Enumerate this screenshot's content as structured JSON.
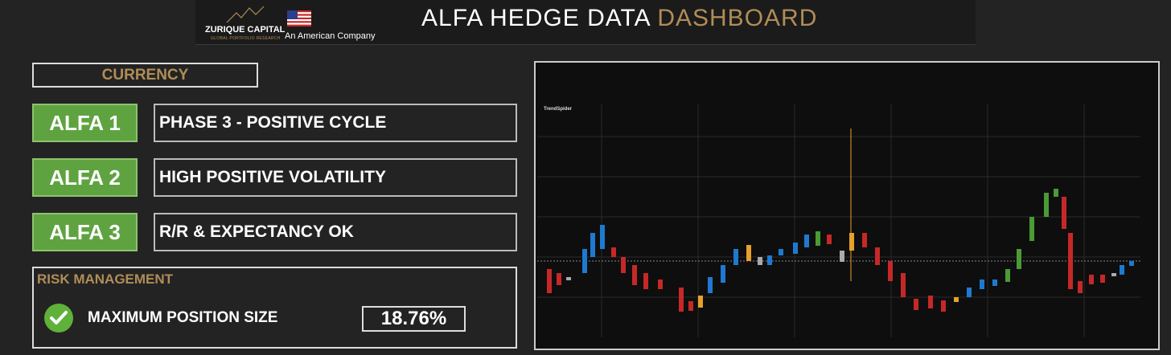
{
  "header": {
    "company": "ZURIQUE CAPITAL",
    "company_subtitle": "GLOBAL PORTFOLIO RESEARCH",
    "tagline": "An American Company",
    "title_main": "ALFA HEDGE DATA",
    "title_accent": "DASHBOARD"
  },
  "currency": {
    "label": "CURRENCY"
  },
  "signals": [
    {
      "name": "ALFA 1",
      "status": "PHASE 3 - POSITIVE CYCLE"
    },
    {
      "name": "ALFA 2",
      "status": "HIGH POSITIVE VOLATILITY"
    },
    {
      "name": "ALFA 3",
      "status": "R/R & EXPECTANCY OK"
    }
  ],
  "risk": {
    "title": "RISK MANAGEMENT",
    "metric_label": "MAXIMUM POSITION SIZE",
    "metric_value": "18.76%"
  },
  "chart": {
    "brand": "TrendSpider"
  }
}
